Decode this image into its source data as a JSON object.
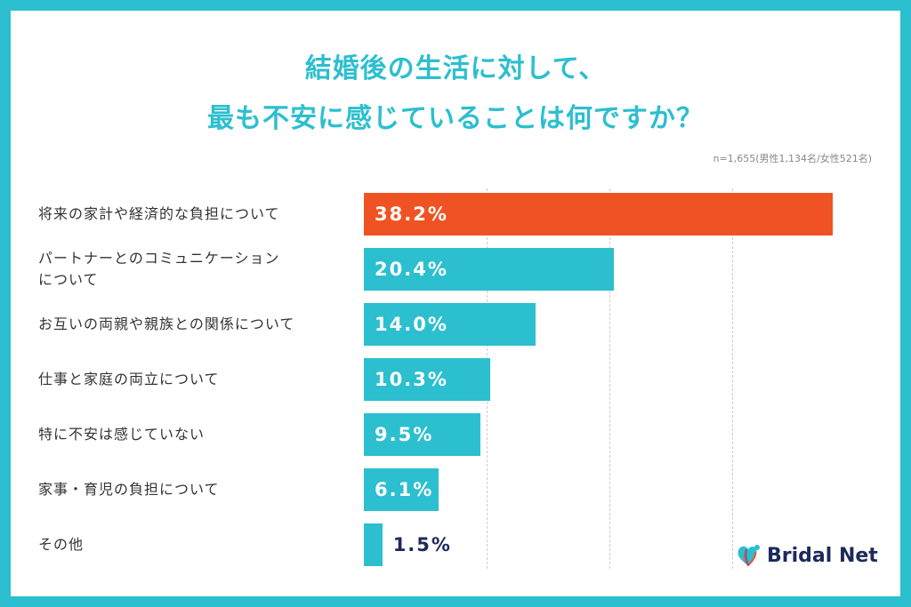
{
  "chart_data": {
    "type": "bar",
    "orientation": "horizontal",
    "title_lines": [
      "結婚後の生活に対して、",
      "最も不安に感じていることは何ですか？"
    ],
    "note": "n=1,655(男性1,134名/女性521名)",
    "categories": [
      "将来の家計や経済的な負担について",
      "パートナーとのコミュニケーション\nについて",
      "お互いの両親や親族との関係について",
      "仕事と家庭の両立について",
      "特に不安は感じていない",
      "家事・育児の負担について",
      "その他"
    ],
    "values": [
      38.2,
      20.4,
      14.0,
      10.3,
      9.5,
      6.1,
      1.5
    ],
    "value_labels": [
      "38.2%",
      "20.4%",
      "14.0%",
      "10.3%",
      "9.5%",
      "6.1%",
      "1.5%"
    ],
    "xlim": [
      0,
      40
    ],
    "grid": true,
    "colors": {
      "highlight": "#f05323",
      "bar": "#2cbfcf",
      "outside_label": "#1c2a5a"
    }
  },
  "brand": "Bridal Net"
}
